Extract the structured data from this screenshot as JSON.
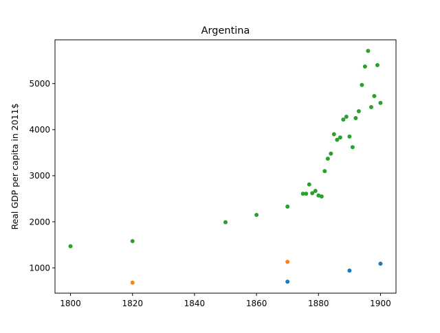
{
  "chart_data": {
    "type": "scatter",
    "title": "Argentina",
    "xlabel": "",
    "ylabel": "Real GDP per capita in 2011$",
    "xlim": [
      1795,
      1905
    ],
    "ylim": [
      450,
      5950
    ],
    "x_ticks": [
      1800,
      1820,
      1840,
      1860,
      1880,
      1900
    ],
    "y_ticks": [
      1000,
      2000,
      3000,
      4000,
      5000
    ],
    "grid": false,
    "series": [
      {
        "color": "#1f77b4",
        "points": [
          [
            1870,
            700
          ],
          [
            1890,
            940
          ],
          [
            1900,
            1090
          ]
        ]
      },
      {
        "color": "#ff7f0e",
        "points": [
          [
            1820,
            680
          ],
          [
            1870,
            1130
          ]
        ]
      },
      {
        "color": "#2ca02c",
        "points": [
          [
            1800,
            1470
          ],
          [
            1820,
            1580
          ],
          [
            1850,
            1990
          ],
          [
            1860,
            2150
          ],
          [
            1870,
            2330
          ],
          [
            1875,
            2610
          ],
          [
            1876,
            2610
          ],
          [
            1877,
            2810
          ],
          [
            1878,
            2620
          ],
          [
            1879,
            2670
          ],
          [
            1880,
            2570
          ],
          [
            1881,
            2550
          ],
          [
            1882,
            3100
          ],
          [
            1883,
            3370
          ],
          [
            1884,
            3480
          ],
          [
            1885,
            3900
          ],
          [
            1886,
            3780
          ],
          [
            1887,
            3830
          ],
          [
            1888,
            4220
          ],
          [
            1889,
            4280
          ],
          [
            1890,
            3850
          ],
          [
            1891,
            3620
          ],
          [
            1892,
            4250
          ],
          [
            1893,
            4400
          ],
          [
            1894,
            4970
          ],
          [
            1895,
            5370
          ],
          [
            1896,
            5710
          ],
          [
            1897,
            4490
          ],
          [
            1898,
            4730
          ],
          [
            1899,
            5400
          ],
          [
            1900,
            4580
          ]
        ]
      }
    ]
  }
}
